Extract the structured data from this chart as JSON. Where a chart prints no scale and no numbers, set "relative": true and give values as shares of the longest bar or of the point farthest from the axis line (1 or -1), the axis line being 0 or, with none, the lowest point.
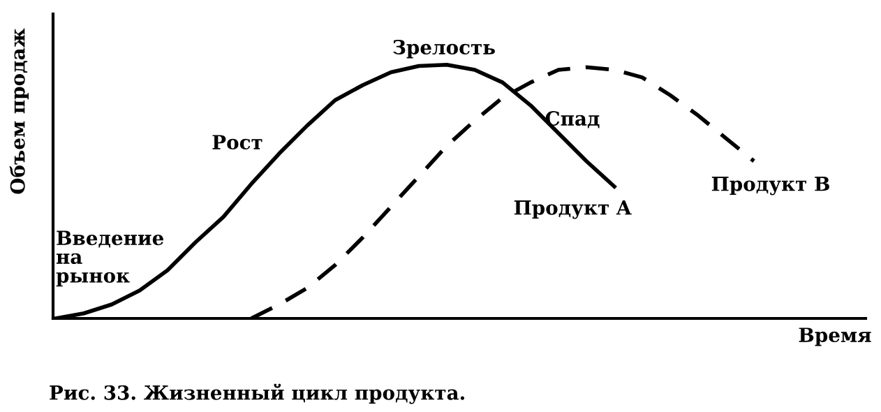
{
  "chart_data": {
    "type": "line",
    "relative": true,
    "xlabel": "Время",
    "ylabel": "Объем продаж",
    "categories": [
      null,
      null,
      null,
      null,
      null,
      null,
      null,
      null,
      null,
      null,
      null,
      null,
      null,
      null,
      null,
      null,
      null,
      null,
      null,
      null,
      null,
      null,
      null,
      null,
      null,
      null
    ],
    "series": [
      {
        "name": "Продукт A",
        "color": "#000000",
        "line_style": "solid",
        "values": [
          0,
          0.02,
          0.055,
          0.11,
          0.19,
          0.3,
          0.4,
          0.53,
          0.65,
          0.76,
          0.86,
          0.92,
          0.97,
          0.995,
          1.0,
          0.98,
          0.93,
          0.84,
          0.73,
          0.62,
          0.52,
          null,
          null,
          null,
          null,
          null
        ]
      },
      {
        "name": "Продукт B",
        "color": "#000000",
        "line_style": "dashed",
        "values": [
          null,
          null,
          null,
          null,
          null,
          null,
          null,
          0,
          0.055,
          0.12,
          0.21,
          0.32,
          0.44,
          0.56,
          0.68,
          0.78,
          0.87,
          0.93,
          0.98,
          0.99,
          0.98,
          0.95,
          0.88,
          0.8,
          0.71,
          0.62
        ]
      }
    ],
    "annotations": [
      "Введение\nна\nрынок",
      "Рост",
      "Зрелость",
      "Спад",
      "Рис. 33. Жизненный цикл продукта."
    ]
  }
}
